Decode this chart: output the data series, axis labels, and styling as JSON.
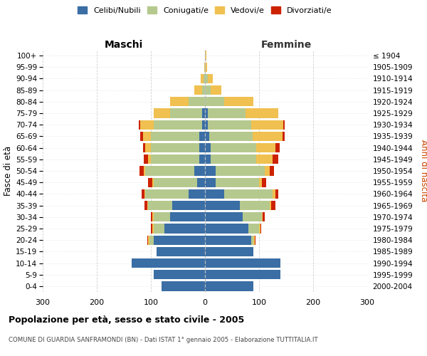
{
  "age_groups": [
    "0-4",
    "5-9",
    "10-14",
    "15-19",
    "20-24",
    "25-29",
    "30-34",
    "35-39",
    "40-44",
    "45-49",
    "50-54",
    "55-59",
    "60-64",
    "65-69",
    "70-74",
    "75-79",
    "80-84",
    "85-89",
    "90-94",
    "95-99",
    "100+"
  ],
  "birth_years": [
    "2000-2004",
    "1995-1999",
    "1990-1994",
    "1985-1989",
    "1980-1984",
    "1975-1979",
    "1970-1974",
    "1965-1969",
    "1960-1964",
    "1955-1959",
    "1950-1954",
    "1945-1949",
    "1940-1944",
    "1935-1939",
    "1930-1934",
    "1925-1929",
    "1920-1924",
    "1915-1919",
    "1910-1914",
    "1905-1909",
    "≤ 1904"
  ],
  "male_celibe": [
    80,
    95,
    135,
    90,
    95,
    75,
    65,
    60,
    30,
    15,
    20,
    10,
    10,
    10,
    5,
    5,
    0,
    0,
    0,
    0,
    0
  ],
  "male_coniugato": [
    0,
    0,
    0,
    0,
    8,
    20,
    30,
    45,
    80,
    80,
    90,
    90,
    90,
    90,
    90,
    60,
    30,
    5,
    3,
    0,
    0
  ],
  "male_vedovo": [
    0,
    0,
    0,
    0,
    2,
    2,
    2,
    2,
    2,
    2,
    3,
    5,
    10,
    15,
    25,
    30,
    35,
    15,
    5,
    1,
    0
  ],
  "male_divorziato": [
    0,
    0,
    0,
    0,
    2,
    3,
    3,
    5,
    5,
    8,
    8,
    8,
    5,
    5,
    2,
    0,
    0,
    0,
    0,
    0,
    0
  ],
  "fem_celibe": [
    90,
    140,
    140,
    90,
    85,
    80,
    70,
    65,
    35,
    20,
    20,
    10,
    10,
    8,
    5,
    5,
    0,
    0,
    0,
    0,
    0
  ],
  "fem_coniugata": [
    0,
    0,
    0,
    0,
    5,
    20,
    35,
    55,
    90,
    80,
    90,
    85,
    85,
    80,
    80,
    70,
    35,
    10,
    5,
    1,
    0
  ],
  "fem_vedova": [
    0,
    0,
    0,
    0,
    2,
    2,
    2,
    2,
    5,
    5,
    10,
    30,
    35,
    55,
    60,
    60,
    55,
    20,
    10,
    3,
    2
  ],
  "fem_divorziata": [
    0,
    0,
    0,
    0,
    2,
    2,
    3,
    8,
    5,
    8,
    8,
    10,
    8,
    5,
    2,
    0,
    0,
    0,
    0,
    0,
    0
  ],
  "color_celibe": "#3a6ea5",
  "color_coniugato": "#b5c98e",
  "color_vedovo": "#f0c050",
  "color_divorziato": "#cc2200",
  "xlim": 300,
  "title": "Popolazione per età, sesso e stato civile - 2005",
  "subtitle": "COMUNE DI GUARDIA SANFRAMONDI (BN) - Dati ISTAT 1° gennaio 2005 - Elaborazione TUTTITALIA.IT",
  "ylabel_left": "Fasce di età",
  "ylabel_right": "Anni di nascita",
  "label_maschi": "Maschi",
  "label_femmine": "Femmine",
  "legend_labels": [
    "Celibi/Nubili",
    "Coniugati/e",
    "Vedovi/e",
    "Divorziati/e"
  ],
  "bg_color": "#ffffff",
  "grid_color": "#cccccc"
}
